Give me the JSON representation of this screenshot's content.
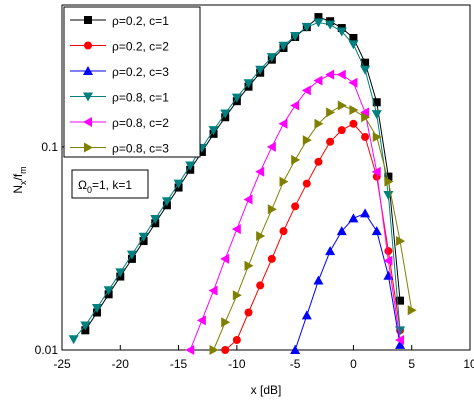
{
  "chart_data": {
    "type": "line",
    "xlabel": "x [dB]",
    "ylabel_parts": [
      "N",
      "x",
      "/f",
      "m"
    ],
    "annotation_parts": [
      "Ω",
      "0",
      "=1, k=1"
    ],
    "xlim": [
      -25,
      10
    ],
    "xticks": [
      -25,
      -20,
      -15,
      -10,
      -5,
      0,
      5,
      10
    ],
    "ylim": [
      0.01,
      0.5
    ],
    "yticks": [
      0.01,
      0.1
    ],
    "log_y": true,
    "legend": "upper-left",
    "series": [
      {
        "name": "ρ=0.2, c=1",
        "color": "#000000",
        "marker": "square",
        "x": [
          -23,
          -22,
          -21,
          -20,
          -19,
          -18,
          -17,
          -16,
          -15,
          -14,
          -13,
          -12,
          -11,
          -10,
          -9,
          -8,
          -7,
          -6,
          -5,
          -4,
          -3,
          -2,
          -1,
          0,
          1,
          2,
          3,
          4
        ],
        "values": [
          0.0125,
          0.0153,
          0.0188,
          0.023,
          0.0281,
          0.0344,
          0.0421,
          0.0516,
          0.0631,
          0.0772,
          0.0945,
          0.116,
          0.14,
          0.168,
          0.198,
          0.232,
          0.269,
          0.307,
          0.348,
          0.389,
          0.436,
          0.416,
          0.385,
          0.344,
          0.26,
          0.166,
          0.0714,
          0.0175
        ]
      },
      {
        "name": "ρ=0.2, c=2",
        "color": "#ff0000",
        "marker": "circle",
        "x": [
          -11,
          -10,
          -9,
          -8,
          -7,
          -6,
          -5,
          -4,
          -3,
          -2,
          -1,
          0,
          1,
          2,
          3,
          4
        ],
        "values": [
          0.01,
          0.0112,
          0.0153,
          0.0208,
          0.0281,
          0.0385,
          0.051,
          0.066,
          0.0845,
          0.106,
          0.121,
          0.13,
          0.112,
          0.0714,
          0.0307,
          0.0125
        ]
      },
      {
        "name": "ρ=0.2, c=3",
        "color": "#0000ff",
        "marker": "triangle-up",
        "x": [
          -5,
          -4,
          -3,
          -2,
          -1,
          0,
          1,
          2,
          3,
          4
        ],
        "values": [
          0.01,
          0.0148,
          0.022,
          0.0307,
          0.0385,
          0.0445,
          0.0471,
          0.0385,
          0.0232,
          0.0106
        ]
      },
      {
        "name": "ρ=0.8, c=1",
        "color": "#008080",
        "marker": "triangle-down",
        "x": [
          -24,
          -23,
          -22,
          -21,
          -20,
          -19,
          -18,
          -17,
          -16,
          -15,
          -14,
          -13,
          -12,
          -11,
          -10,
          -9,
          -8,
          -7,
          -6,
          -5,
          -4,
          -3,
          -2,
          -1,
          0,
          1,
          2,
          3,
          4
        ],
        "values": [
          0.0113,
          0.0132,
          0.0161,
          0.0197,
          0.0241,
          0.0295,
          0.0361,
          0.0442,
          0.054,
          0.066,
          0.081,
          0.099,
          0.121,
          0.146,
          0.175,
          0.206,
          0.24,
          0.277,
          0.315,
          0.352,
          0.39,
          0.41,
          0.4,
          0.37,
          0.32,
          0.24,
          0.145,
          0.058,
          0.0125
        ]
      },
      {
        "name": "ρ=0.8, c=2",
        "color": "#ff00ff",
        "marker": "triangle-left",
        "x": [
          -14,
          -13,
          -12,
          -11,
          -10,
          -9,
          -8,
          -7,
          -6,
          -5,
          -4,
          -3,
          -2,
          -1,
          0,
          1,
          2,
          3,
          4
        ],
        "values": [
          0.01,
          0.014,
          0.0196,
          0.0281,
          0.0394,
          0.0551,
          0.0755,
          0.1,
          0.13,
          0.16,
          0.19,
          0.212,
          0.227,
          0.227,
          0.207,
          0.148,
          0.0755,
          0.0275,
          0.0112
        ]
      },
      {
        "name": "ρ=0.8, c=3",
        "color": "#808000",
        "marker": "triangle-right",
        "x": [
          -12,
          -11,
          -10,
          -9,
          -8,
          -7,
          -6,
          -5,
          -4,
          -3,
          -2,
          -1,
          0,
          1,
          2,
          3,
          4,
          5
        ],
        "values": [
          0.01,
          0.0137,
          0.0186,
          0.026,
          0.0364,
          0.0493,
          0.0675,
          0.0864,
          0.108,
          0.13,
          0.148,
          0.16,
          0.152,
          0.14,
          0.112,
          0.0675,
          0.0344,
          0.0157
        ]
      }
    ]
  }
}
